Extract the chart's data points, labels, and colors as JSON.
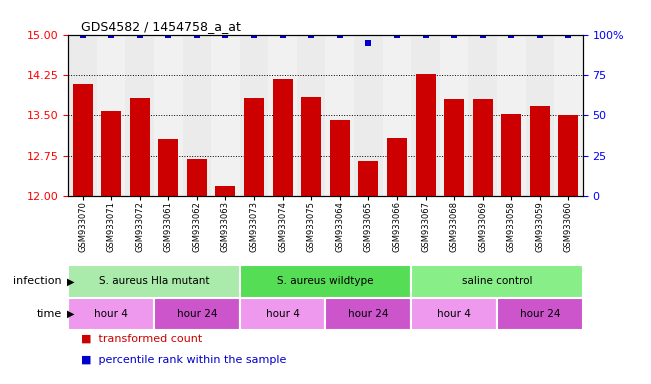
{
  "title": "GDS4582 / 1454758_a_at",
  "samples": [
    "GSM933070",
    "GSM933071",
    "GSM933072",
    "GSM933061",
    "GSM933062",
    "GSM933063",
    "GSM933073",
    "GSM933074",
    "GSM933075",
    "GSM933064",
    "GSM933065",
    "GSM933066",
    "GSM933067",
    "GSM933068",
    "GSM933069",
    "GSM933058",
    "GSM933059",
    "GSM933060"
  ],
  "bar_values": [
    14.08,
    13.57,
    13.82,
    13.05,
    12.68,
    12.18,
    13.82,
    14.17,
    13.83,
    13.42,
    12.65,
    13.08,
    14.26,
    13.81,
    13.81,
    13.53,
    13.67,
    13.51
  ],
  "percentile_values": [
    100,
    100,
    100,
    100,
    100,
    100,
    100,
    100,
    100,
    100,
    95,
    100,
    100,
    100,
    100,
    100,
    100,
    100
  ],
  "ylim_left": [
    12,
    15
  ],
  "ylim_right": [
    0,
    100
  ],
  "yticks_left": [
    12,
    12.75,
    13.5,
    14.25,
    15
  ],
  "yticks_right": [
    0,
    25,
    50,
    75,
    100
  ],
  "bar_color": "#cc0000",
  "dot_color": "#0000cc",
  "infection_groups": [
    {
      "label": "S. aureus Hla mutant",
      "start": 0,
      "end": 6,
      "color": "#aaeaaa"
    },
    {
      "label": "S. aureus wildtype",
      "start": 6,
      "end": 12,
      "color": "#55dd55"
    },
    {
      "label": "saline control",
      "start": 12,
      "end": 18,
      "color": "#88ee88"
    }
  ],
  "time_groups": [
    {
      "label": "hour 4",
      "start": 0,
      "end": 3,
      "color": "#ee99ee"
    },
    {
      "label": "hour 24",
      "start": 3,
      "end": 6,
      "color": "#cc55cc"
    },
    {
      "label": "hour 4",
      "start": 6,
      "end": 9,
      "color": "#ee99ee"
    },
    {
      "label": "hour 24",
      "start": 9,
      "end": 12,
      "color": "#cc55cc"
    },
    {
      "label": "hour 4",
      "start": 12,
      "end": 15,
      "color": "#ee99ee"
    },
    {
      "label": "hour 24",
      "start": 15,
      "end": 18,
      "color": "#cc55cc"
    }
  ],
  "legend_items": [
    {
      "label": "transformed count",
      "color": "#cc0000"
    },
    {
      "label": "percentile rank within the sample",
      "color": "#0000cc"
    }
  ]
}
